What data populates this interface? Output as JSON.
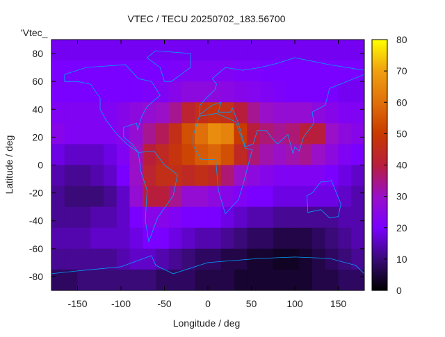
{
  "chart_data": {
    "type": "heatmap",
    "title": "VTEC / TECU 20250702_183.56700",
    "xlabel": "Longitude / deg",
    "ylabel": "Latitude / deg",
    "legend_key": "'Vtec_",
    "xlim": [
      -180,
      180
    ],
    "ylim": [
      -90,
      90
    ],
    "xticks": [
      -150,
      -100,
      -50,
      0,
      50,
      100,
      150
    ],
    "xtick_labels": [
      "-150",
      "-100",
      "-50",
      "0",
      "50",
      "100",
      "150"
    ],
    "yticks": [
      -80,
      -60,
      -40,
      -20,
      0,
      20,
      40,
      60,
      80
    ],
    "ytick_labels": [
      "-80",
      "-60",
      "-40",
      "-20",
      "0",
      "20",
      "40",
      "60",
      "80"
    ],
    "colorbar": {
      "range": [
        0,
        80
      ],
      "ticks": [
        0,
        10,
        20,
        30,
        40,
        50,
        60,
        70,
        80
      ],
      "tick_labels": [
        "0",
        "10",
        "20",
        "30",
        "40",
        "50",
        "60",
        "70",
        "80"
      ],
      "palette": [
        "#000000",
        "#3a0a78",
        "#7a00ff",
        "#9a10c8",
        "#b81e3c",
        "#c83a00",
        "#e0700a",
        "#f0a010",
        "#ffff00"
      ]
    },
    "coastline_color": "#00a0ff",
    "grid_lon_centers": [
      -172.5,
      -157.5,
      -142.5,
      -127.5,
      -112.5,
      -97.5,
      -82.5,
      -67.5,
      -52.5,
      -37.5,
      -22.5,
      -7.5,
      7.5,
      22.5,
      37.5,
      52.5,
      67.5,
      82.5,
      97.5,
      112.5,
      127.5,
      142.5,
      157.5,
      172.5
    ],
    "grid_lat_centers": [
      82.5,
      67.5,
      52.5,
      37.5,
      22.5,
      7.5,
      -7.5,
      -22.5,
      -37.5,
      -52.5,
      -67.5,
      -82.5
    ],
    "values": [
      [
        19,
        19,
        19,
        19,
        19,
        19,
        19,
        19,
        19,
        19,
        19,
        19,
        19,
        19,
        19,
        19,
        19,
        19,
        19,
        19,
        19,
        19,
        19,
        19
      ],
      [
        20,
        20,
        20,
        20,
        20,
        20,
        20,
        20,
        20,
        21,
        22,
        22,
        22,
        22,
        21,
        21,
        20,
        20,
        20,
        20,
        20,
        20,
        20,
        20
      ],
      [
        20,
        20,
        20,
        20,
        20,
        20,
        20,
        21,
        22,
        24,
        26,
        26,
        26,
        25,
        24,
        23,
        22,
        21,
        20,
        20,
        20,
        20,
        19,
        19
      ],
      [
        22,
        22,
        22,
        22,
        22,
        24,
        26,
        28,
        30,
        34,
        42,
        46,
        48,
        46,
        40,
        34,
        30,
        28,
        28,
        28,
        26,
        24,
        22,
        22
      ],
      [
        24,
        22,
        22,
        22,
        22,
        24,
        28,
        34,
        38,
        46,
        54,
        60,
        66,
        64,
        50,
        40,
        36,
        34,
        36,
        40,
        40,
        30,
        26,
        24
      ],
      [
        18,
        16,
        16,
        16,
        18,
        22,
        30,
        40,
        44,
        48,
        52,
        56,
        58,
        54,
        44,
        36,
        32,
        30,
        32,
        34,
        30,
        26,
        22,
        20
      ],
      [
        14,
        12,
        12,
        14,
        16,
        20,
        30,
        42,
        46,
        46,
        44,
        46,
        44,
        36,
        30,
        26,
        24,
        22,
        22,
        22,
        22,
        20,
        18,
        16
      ],
      [
        12,
        10,
        10,
        10,
        12,
        16,
        28,
        40,
        40,
        34,
        28,
        28,
        26,
        24,
        22,
        20,
        20,
        18,
        18,
        18,
        18,
        18,
        16,
        14
      ],
      [
        12,
        12,
        12,
        14,
        14,
        16,
        20,
        24,
        24,
        22,
        20,
        20,
        20,
        18,
        16,
        14,
        14,
        12,
        12,
        12,
        12,
        12,
        14,
        14
      ],
      [
        14,
        14,
        14,
        16,
        16,
        16,
        18,
        20,
        20,
        18,
        16,
        14,
        14,
        12,
        10,
        8,
        8,
        6,
        6,
        6,
        8,
        10,
        12,
        14
      ],
      [
        12,
        12,
        12,
        12,
        12,
        14,
        16,
        16,
        14,
        12,
        10,
        8,
        8,
        6,
        6,
        4,
        4,
        3,
        3,
        4,
        6,
        8,
        10,
        12
      ],
      [
        8,
        8,
        10,
        10,
        10,
        10,
        10,
        10,
        8,
        8,
        8,
        6,
        6,
        6,
        4,
        4,
        4,
        4,
        4,
        4,
        6,
        6,
        8,
        8
      ]
    ]
  }
}
